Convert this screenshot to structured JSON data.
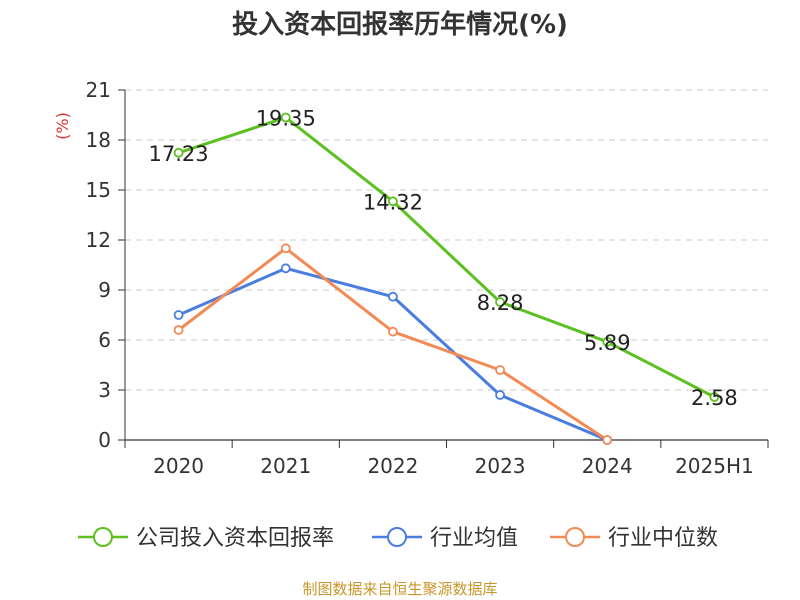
{
  "chart_data": {
    "type": "line",
    "title": "投入资本回报率历年情况(%)",
    "ylabel": "(%)",
    "xlabel": "",
    "categories": [
      "2020",
      "2021",
      "2022",
      "2023",
      "2024",
      "2025H1"
    ],
    "ylim": [
      0,
      21
    ],
    "yticks": [
      "0",
      "3",
      "6",
      "9",
      "12",
      "15",
      "18",
      "21"
    ],
    "grid": "horizontal-dashed",
    "legend_position": "bottom",
    "series": [
      {
        "name": "公司投入资本回报率",
        "color": "#5cc021",
        "values": [
          17.23,
          19.35,
          14.32,
          8.28,
          5.89,
          2.58
        ],
        "labels": [
          "17.23",
          "19.35",
          "14.32",
          "8.28",
          "5.89",
          "2.58"
        ]
      },
      {
        "name": "行业均值",
        "color": "#4a7de0",
        "values": [
          7.5,
          10.3,
          8.6,
          2.7,
          0.0,
          null
        ]
      },
      {
        "name": "行业中位数",
        "color": "#f28a55",
        "values": [
          6.6,
          11.5,
          6.5,
          4.2,
          0.0,
          null
        ]
      }
    ],
    "source": "制图数据来自恒生聚源数据库"
  }
}
